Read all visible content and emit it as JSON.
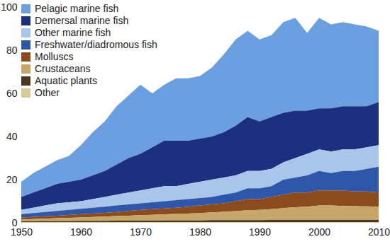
{
  "chart_data": {
    "type": "area",
    "stacked": true,
    "legend": "top-left",
    "grid": false,
    "x": [
      1950,
      1952,
      1954,
      1956,
      1958,
      1960,
      1962,
      1964,
      1966,
      1968,
      1970,
      1972,
      1974,
      1976,
      1978,
      1980,
      1982,
      1984,
      1986,
      1988,
      1990,
      1992,
      1994,
      1996,
      1998,
      2000,
      2002,
      2004,
      2006,
      2008,
      2010
    ],
    "xlim": [
      1950,
      2010
    ],
    "xticks": [
      1950,
      1960,
      1970,
      1980,
      1990,
      2000,
      2010
    ],
    "ylim": [
      0,
      100
    ],
    "yticks": [
      0,
      20,
      40,
      60,
      80,
      100
    ],
    "series": [
      {
        "name": "Pelagic marine fish",
        "color": "#6b9fdf",
        "values": [
          7,
          9,
          10,
          11,
          12,
          16,
          20,
          23,
          27,
          29,
          32,
          25,
          26,
          29,
          29,
          29,
          32,
          36,
          40,
          40,
          38,
          38,
          42,
          43,
          36,
          42,
          39,
          39,
          38,
          37,
          33
        ]
      },
      {
        "name": "Demersal marine fish",
        "color": "#1d2f7f",
        "values": [
          6,
          7,
          8,
          9,
          9.5,
          10,
          11,
          12,
          14,
          16,
          17,
          19,
          21,
          21,
          20,
          20,
          20,
          21,
          23,
          25,
          23,
          24,
          23,
          22,
          20,
          19,
          20,
          20,
          20,
          19,
          20
        ]
      },
      {
        "name": "Other marine fish",
        "color": "#a9c5eb",
        "values": [
          2,
          2.5,
          3,
          3.5,
          3.5,
          3.5,
          4,
          4.5,
          5,
          5.5,
          6,
          6.5,
          7,
          6.5,
          7,
          7.5,
          8,
          8,
          8,
          8,
          8,
          8,
          8,
          9,
          10,
          10,
          10,
          10,
          10,
          10,
          10
        ]
      },
      {
        "name": "Freshwater/diadromous fish",
        "color": "#2e56a9",
        "values": [
          1.5,
          1.7,
          2,
          2.2,
          2.4,
          2.5,
          2.7,
          2.9,
          3,
          3,
          3,
          3.2,
          3.4,
          3.5,
          3.5,
          3.5,
          3.5,
          4,
          4,
          5,
          5,
          5,
          7,
          7,
          8,
          9,
          8,
          9,
          9.5,
          10.5,
          12
        ]
      },
      {
        "name": "Molluscs",
        "color": "#8b4b1d",
        "values": [
          1,
          1.1,
          1.1,
          1.2,
          1.3,
          1.5,
          1.6,
          1.7,
          1.9,
          2.2,
          2.5,
          2.6,
          2.7,
          2.9,
          3.2,
          3.5,
          3.7,
          3.9,
          4.6,
          5.2,
          5,
          5.7,
          6.2,
          6.8,
          6.5,
          7,
          7,
          7.2,
          6.8,
          6.9,
          6.5
        ]
      },
      {
        "name": "Crustaceans",
        "color": "#c6a66b",
        "values": [
          0.8,
          1,
          1.1,
          1.3,
          1.5,
          1.6,
          1.8,
          2,
          2.1,
          2.3,
          2.5,
          2.7,
          2.8,
          3,
          3.2,
          3.4,
          3.6,
          3.9,
          4.2,
          4.6,
          4.8,
          5,
          5.5,
          5.9,
          6.2,
          6.7,
          6.7,
          6.5,
          6.4,
          6.3,
          6.2
        ]
      },
      {
        "name": "Aquatic plants",
        "color": "#4b3621",
        "values": [
          0.4,
          0.4,
          0.5,
          0.5,
          0.5,
          0.6,
          0.6,
          0.6,
          0.7,
          0.7,
          0.7,
          0.7,
          0.8,
          0.8,
          0.8,
          0.8,
          0.9,
          0.9,
          0.9,
          0.9,
          0.9,
          1,
          1,
          1,
          1,
          1,
          1,
          1,
          1,
          1,
          1
        ]
      },
      {
        "name": "Other",
        "color": "#d9c99b",
        "values": [
          0.3,
          0.3,
          0.3,
          0.3,
          0.3,
          0.3,
          0.3,
          0.3,
          0.3,
          0.3,
          0.3,
          0.3,
          0.3,
          0.3,
          0.3,
          0.3,
          0.3,
          0.3,
          0.3,
          0.3,
          0.3,
          0.3,
          0.3,
          0.3,
          0.3,
          0.3,
          0.3,
          0.3,
          0.3,
          0.3,
          0.3
        ]
      }
    ]
  }
}
